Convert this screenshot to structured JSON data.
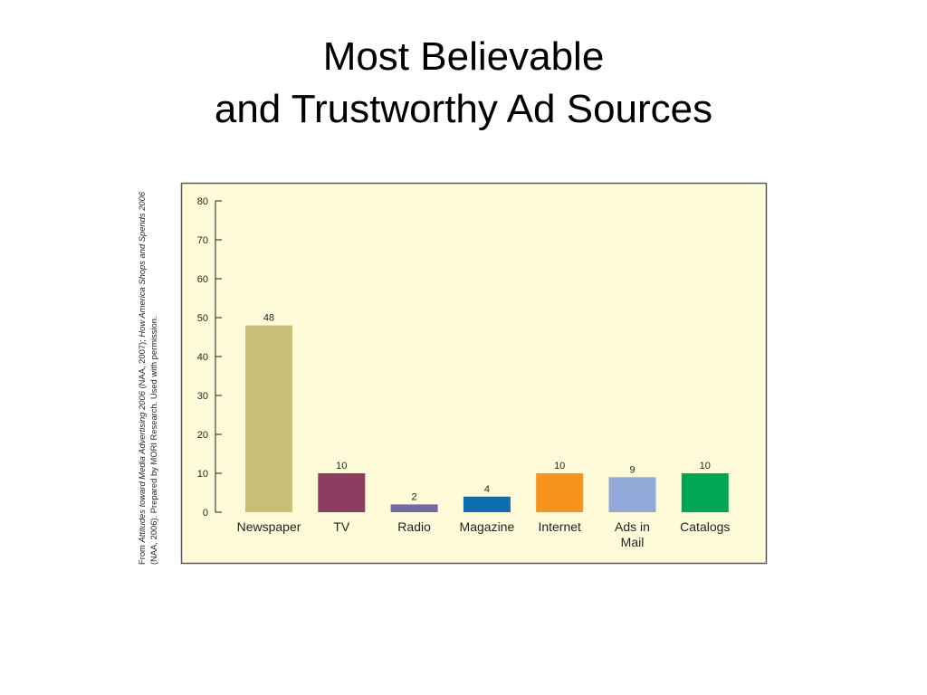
{
  "slide": {
    "title_line1": "Most Believable",
    "title_line2": "and Trustworthy Ad Sources"
  },
  "credit": {
    "prefix": "From ",
    "title1": "Attitudes toward Media Advertising 2006",
    "mid1": " (NAA, 2007); ",
    "title2": "How America Shops and Spends 2006",
    "suffix": " (NAA, 2006). Prepared by MORI Research. Used with permission."
  },
  "colors": {
    "panel_background": "#fffbd9",
    "panel_border": "#58595b",
    "axis": "#231f20"
  },
  "chart_data": {
    "type": "bar",
    "title": "",
    "xlabel": "",
    "ylabel": "",
    "ylim": [
      0,
      80
    ],
    "yticks": [
      0,
      10,
      20,
      30,
      40,
      50,
      60,
      70,
      80
    ],
    "grid": false,
    "legend": "none",
    "categories": [
      "Newspaper",
      "TV",
      "Radio",
      "Magazine",
      "Internet",
      "Ads in Mail",
      "Catalogs"
    ],
    "category_lines": [
      [
        "Newspaper"
      ],
      [
        "TV"
      ],
      [
        "Radio"
      ],
      [
        "Magazine"
      ],
      [
        "Internet"
      ],
      [
        "Ads in",
        "Mail"
      ],
      [
        "Catalogs"
      ]
    ],
    "values": [
      48,
      10,
      2,
      4,
      10,
      9,
      10
    ],
    "data_labels": [
      "48",
      "10",
      "2",
      "4",
      "10",
      "9",
      "10"
    ],
    "bar_colors": [
      "#c8bf78",
      "#8b3d62",
      "#6f6ca3",
      "#0b6fb2",
      "#f7941d",
      "#92a8d9",
      "#00a651"
    ]
  }
}
